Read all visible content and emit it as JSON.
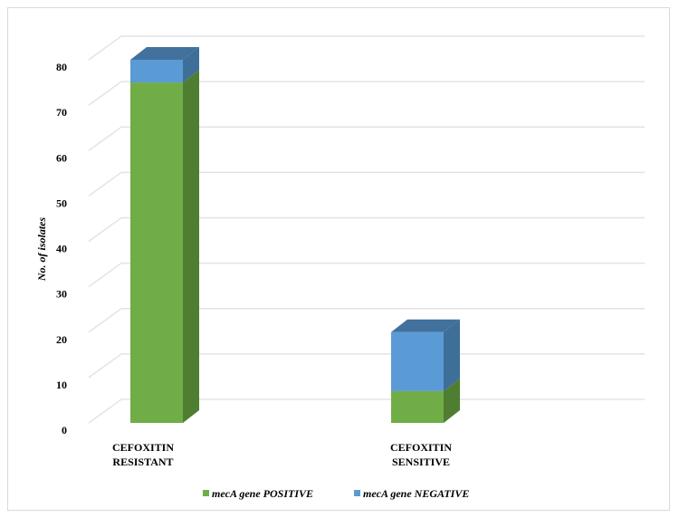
{
  "chart_data": {
    "type": "bar",
    "stacked": true,
    "three_d": true,
    "ylabel": "No. of isolates",
    "ylim": [
      0,
      80
    ],
    "yticks": [
      0,
      10,
      20,
      30,
      40,
      50,
      60,
      70,
      80
    ],
    "categories": [
      {
        "line1": "CEFOXITIN",
        "line2": "RESISTANT"
      },
      {
        "line1": "CEFOXITIN",
        "line2": "SENSITIVE"
      }
    ],
    "series": [
      {
        "name_italic": "mecA",
        "name_rest": " gene POSITIVE",
        "values": [
          75,
          7
        ],
        "color": "#70ad47",
        "side_color": "#4f7d32",
        "top_color": "#5e9a3a"
      },
      {
        "name_italic": "mecA",
        "name_rest": " gene NEGATIVE",
        "values": [
          5,
          13
        ],
        "color": "#5b9bd5",
        "side_color": "#3e6f99",
        "top_color": "#41719c"
      }
    ],
    "grid": true,
    "legend": "bottom"
  }
}
